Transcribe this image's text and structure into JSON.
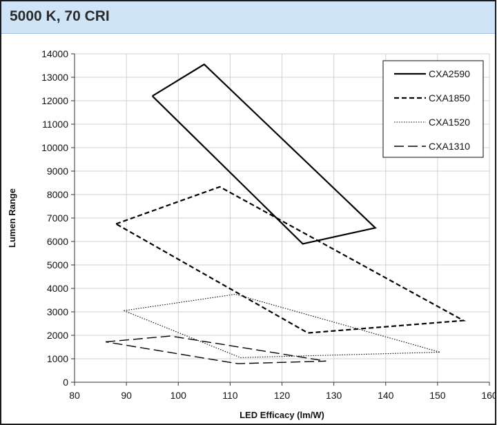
{
  "title": "5000 K, 70 CRI",
  "chart_data": {
    "type": "line",
    "title": "5000 K, 70 CRI",
    "xlabel": "LED Efficacy (lm/W)",
    "ylabel": "Lumen Range",
    "xlim": [
      80,
      160
    ],
    "ylim": [
      0,
      14000
    ],
    "xticks": [
      "80",
      "90",
      "100",
      "110",
      "120",
      "130",
      "140",
      "150",
      "160"
    ],
    "yticks": [
      "0",
      "1000",
      "2000",
      "3000",
      "4000",
      "5000",
      "6000",
      "7000",
      "8000",
      "9000",
      "10000",
      "11000",
      "12000",
      "13000",
      "14000"
    ],
    "grid": true,
    "legend_position": "top-right",
    "series": [
      {
        "name": "CXA2590",
        "style": "solid",
        "color": "#000000",
        "points": [
          [
            95,
            12200
          ],
          [
            105,
            13550
          ],
          [
            138,
            6580
          ],
          [
            124,
            5900
          ],
          [
            95,
            12200
          ]
        ]
      },
      {
        "name": "CXA1850",
        "style": "dashed",
        "color": "#000000",
        "points": [
          [
            88,
            6750
          ],
          [
            108,
            8330
          ],
          [
            155,
            2630
          ],
          [
            125,
            2100
          ],
          [
            88,
            6750
          ]
        ]
      },
      {
        "name": "CXA1520",
        "style": "dotted",
        "color": "#000000",
        "points": [
          [
            89.5,
            3050
          ],
          [
            111,
            3750
          ],
          [
            150.5,
            1280
          ],
          [
            112,
            1050
          ],
          [
            89.5,
            3050
          ]
        ]
      },
      {
        "name": "CXA1310",
        "style": "longdash",
        "color": "#000000",
        "points": [
          [
            86,
            1720
          ],
          [
            98.5,
            1970
          ],
          [
            128.5,
            900
          ],
          [
            111.5,
            790
          ],
          [
            86,
            1720
          ]
        ]
      }
    ]
  }
}
